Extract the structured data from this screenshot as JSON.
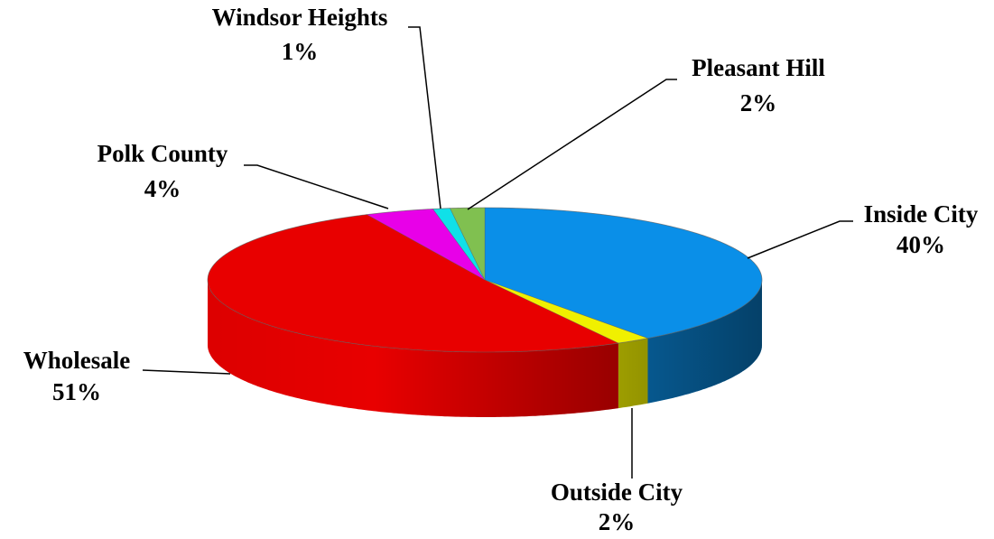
{
  "chart_data": {
    "type": "pie3d",
    "categories": [
      "Inside City",
      "Outside City",
      "Wholesale",
      "Polk County",
      "Windsor Heights",
      "Pleasant Hill"
    ],
    "values": [
      40,
      2,
      51,
      4,
      1,
      2
    ],
    "value_labels": [
      "40%",
      "2%",
      "51%",
      "4%",
      "1%",
      "2%"
    ],
    "colors": [
      "#0a8fe8",
      "#f0f000",
      "#e80000",
      "#e800e8",
      "#10e0e8",
      "#80c050"
    ]
  }
}
